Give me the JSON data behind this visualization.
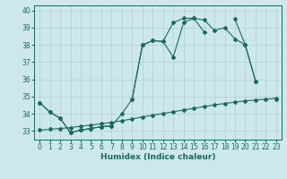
{
  "xlabel": "Humidex (Indice chaleur)",
  "xlim": [
    -0.5,
    23.5
  ],
  "ylim": [
    32.5,
    40.3
  ],
  "yticks": [
    33,
    34,
    35,
    36,
    37,
    38,
    39,
    40
  ],
  "xticks": [
    0,
    1,
    2,
    3,
    4,
    5,
    6,
    7,
    8,
    9,
    10,
    11,
    12,
    13,
    14,
    15,
    16,
    17,
    18,
    19,
    20,
    21,
    22,
    23
  ],
  "bg_color": "#cce8ec",
  "grid_color": "#b0ced4",
  "line_color": "#1a6b5a",
  "line1_y": [
    34.65,
    34.1,
    33.75,
    32.9,
    33.05,
    33.15,
    33.25,
    33.3,
    34.0,
    34.85,
    38.0,
    38.25,
    38.2,
    37.3,
    39.3,
    39.55,
    39.45,
    38.85,
    39.0,
    38.35,
    38.0,
    35.9,
    null,
    null
  ],
  "line2_y": [
    34.65,
    34.1,
    33.75,
    32.9,
    33.05,
    33.15,
    33.25,
    33.3,
    null,
    34.85,
    38.0,
    38.25,
    38.2,
    39.3,
    39.55,
    39.55,
    38.75,
    null,
    null,
    39.5,
    38.0,
    35.9,
    null,
    34.85
  ],
  "line3_y": [
    33.05,
    33.1,
    33.15,
    33.2,
    33.28,
    33.35,
    33.42,
    33.5,
    33.6,
    33.7,
    33.82,
    33.92,
    34.02,
    34.12,
    34.22,
    34.32,
    34.42,
    34.52,
    34.6,
    34.68,
    34.75,
    34.8,
    34.85,
    34.9
  ]
}
